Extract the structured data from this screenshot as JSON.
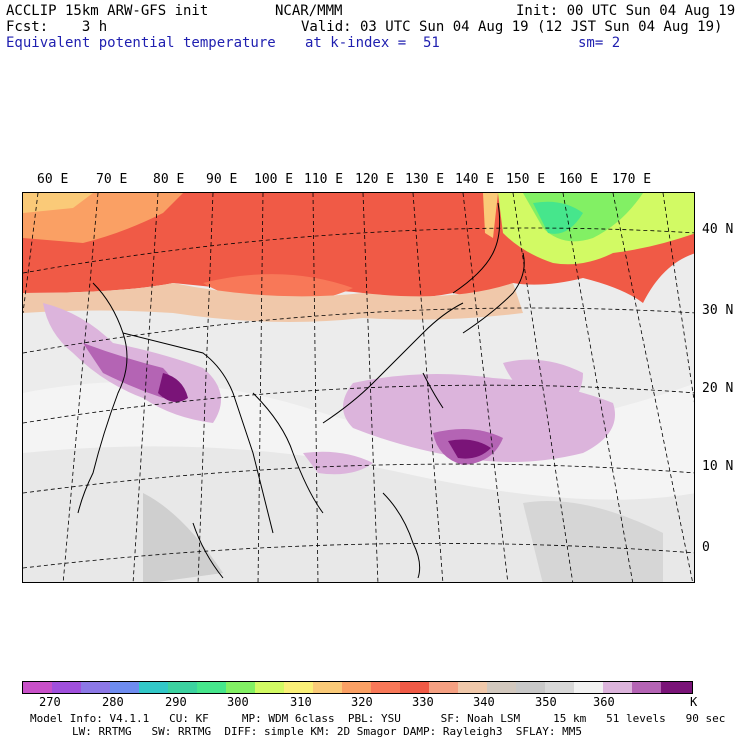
{
  "header": {
    "line1_left": "ACCLIP 15km ARW-GFS init",
    "line1_mid": "NCAR/MMM",
    "line1_right": "Init: 00 UTC Sun 04 Aug 19",
    "line2_left": "Fcst:    3 h",
    "line2_right": "Valid: 03 UTC Sun 04 Aug 19 (12 JST Sun 04 Aug 19)",
    "line3_left": "Equivalent potential temperature",
    "line3_mid": "at k-index =  51",
    "line3_right": "sm= 2"
  },
  "map": {
    "lon_labels": [
      "60 E",
      "70 E",
      "80 E",
      "90 E",
      "100 E",
      "110 E",
      "120 E",
      "130 E",
      "140 E",
      "150 E",
      "160 E",
      "170 E"
    ],
    "lat_labels": [
      "40 N",
      "30 N",
      "20 N",
      "10 N",
      "0"
    ]
  },
  "colorbar": {
    "colors": [
      "#c850c8",
      "#a050dc",
      "#8c78e6",
      "#6e8cf0",
      "#32c8c8",
      "#3cd2a0",
      "#46e68c",
      "#82f064",
      "#d2fa64",
      "#faf078",
      "#faca78",
      "#faa064",
      "#f87858",
      "#f05a46",
      "#f5a082",
      "#f0c8aa",
      "#d2c8be",
      "#c8c8c8",
      "#d8d8d8",
      "#f2f2f2",
      "#dcb4dc",
      "#b464b4",
      "#7a1478"
    ],
    "tick_labels": [
      "270",
      "280",
      "290",
      "300",
      "310",
      "320",
      "330",
      "340",
      "350",
      "360"
    ],
    "unit": "K"
  },
  "footer": {
    "line1": "Model Info: V4.1.1   CU: KF     MP: WDM 6class  PBL: YSU      SF: Noah LSM     15 km   51 levels   90 sec",
    "line2": "LW: RRTMG   SW: RRTMG  DIFF: simple KM: 2D Smagor DAMP: Rayleigh3  SFLAY: MM5"
  }
}
